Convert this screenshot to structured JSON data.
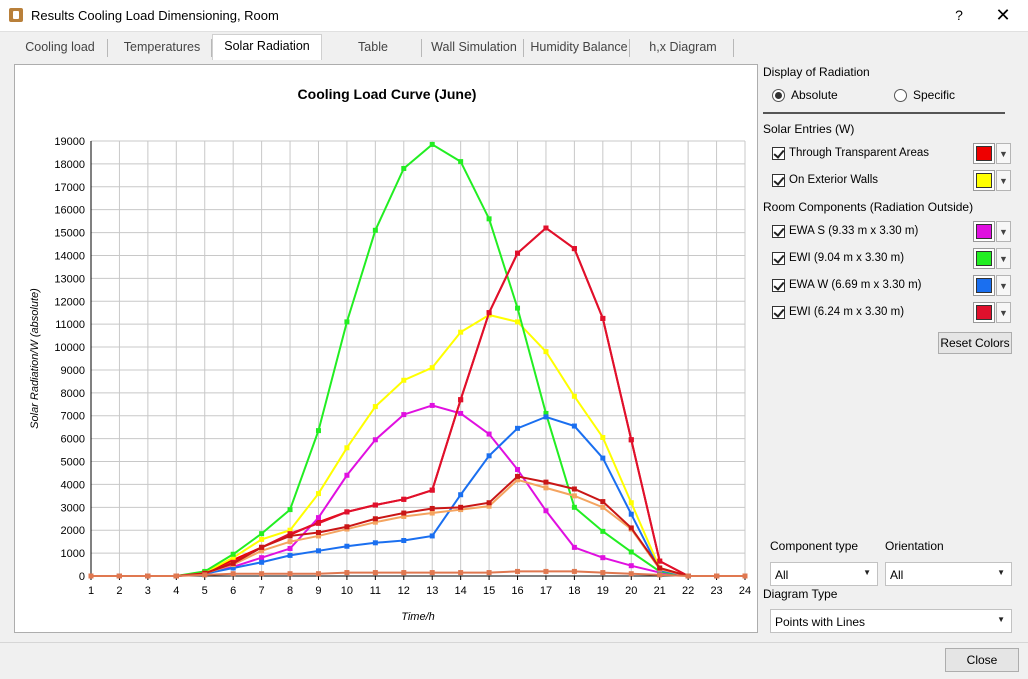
{
  "window": {
    "title": "Results Cooling Load Dimensioning, Room",
    "help": "?",
    "close": "✕"
  },
  "tabs": [
    {
      "label": "Cooling load"
    },
    {
      "label": "Temperatures"
    },
    {
      "label": "Solar Radiation"
    },
    {
      "label": "Table"
    },
    {
      "label": "Wall Simulation"
    },
    {
      "label": "Humidity Balance"
    },
    {
      "label": "h,x Diagram"
    }
  ],
  "right": {
    "display_label": "Display of Radiation",
    "absolute": "Absolute",
    "specific": "Specific",
    "solar_entries_label": "Solar Entries (W)",
    "through_transparent": "Through Transparent Areas",
    "on_exterior_walls": "On Exterior Walls",
    "room_components_label": "Room Components (Radiation Outside)",
    "components": [
      {
        "label": "EWA S (9.33 m x 3.30 m)",
        "color": "#e010e0"
      },
      {
        "label": "EWI (9.04 m x 3.30 m)",
        "color": "#22ee22"
      },
      {
        "label": "EWA W (6.69 m x 3.30 m)",
        "color": "#1a6ff0"
      },
      {
        "label": "EWI (6.24 m x 3.30 m)",
        "color": "#e0102c"
      }
    ],
    "transparent_color": "#ee0000",
    "walls_color": "#ffff00",
    "reset_colors": "Reset Colors",
    "component_type_label": "Component type",
    "component_type_value": "All",
    "orientation_label": "Orientation",
    "orientation_value": "All",
    "diagram_type_label": "Diagram Type",
    "diagram_type_value": "Points with Lines"
  },
  "footer": {
    "close": "Close"
  },
  "chart_data": {
    "type": "line",
    "title": "Cooling Load Curve (June)",
    "xlabel": "Time/h",
    "ylabel": "Solar Radiation/W (absolute)",
    "xlim": [
      1,
      24
    ],
    "ylim": [
      0,
      19000
    ],
    "x": [
      1,
      2,
      3,
      4,
      5,
      6,
      7,
      8,
      9,
      10,
      11,
      12,
      13,
      14,
      15,
      16,
      17,
      18,
      19,
      20,
      21,
      22,
      23,
      24
    ],
    "yticks": [
      0,
      1000,
      2000,
      3000,
      4000,
      5000,
      6000,
      7000,
      8000,
      9000,
      10000,
      11000,
      12000,
      13000,
      14000,
      15000,
      16000,
      17000,
      18000,
      19000
    ],
    "grid": true,
    "series": [
      {
        "name": "Through Transparent Areas",
        "color": "#ee0000",
        "values": [
          0,
          0,
          0,
          0,
          150,
          700,
          1250,
          1800,
          2350,
          2800,
          3100,
          3350,
          3750,
          7700,
          11500,
          14100,
          15200,
          14300,
          11250,
          5950,
          650,
          0,
          0,
          0
        ]
      },
      {
        "name": "On Exterior Walls",
        "color": "#ffff00",
        "values": [
          0,
          0,
          0,
          0,
          150,
          800,
          1600,
          2000,
          3600,
          5600,
          7400,
          8550,
          9100,
          10650,
          11400,
          11100,
          9800,
          7850,
          6050,
          3200,
          350,
          0,
          0,
          0
        ]
      },
      {
        "name": "EWA S (9.33 m x 3.30 m)",
        "color": "#e010e0",
        "values": [
          0,
          0,
          0,
          0,
          100,
          400,
          800,
          1200,
          2550,
          4400,
          5950,
          7050,
          7450,
          7100,
          6200,
          4650,
          2850,
          1250,
          800,
          450,
          150,
          0,
          0,
          0
        ]
      },
      {
        "name": "EWI (9.04 m x 3.30 m)",
        "color": "#22ee22",
        "values": [
          0,
          0,
          0,
          0,
          200,
          950,
          1850,
          2900,
          6350,
          11100,
          15100,
          17800,
          18850,
          18100,
          15600,
          11700,
          7100,
          3000,
          1950,
          1050,
          200,
          0,
          0,
          0
        ]
      },
      {
        "name": "EWA W (6.69 m x 3.30 m)",
        "color": "#1a6ff0",
        "values": [
          0,
          0,
          0,
          0,
          100,
          350,
          600,
          900,
          1100,
          1300,
          1450,
          1550,
          1750,
          3550,
          5250,
          6450,
          6950,
          6550,
          5150,
          2700,
          250,
          0,
          0,
          0
        ]
      },
      {
        "name": "EWI (6.24 m x 3.30 m)",
        "color": "#e0102c",
        "values": [
          0,
          0,
          0,
          0,
          100,
          600,
          1250,
          1850,
          2300,
          2800,
          3100,
          3350,
          3750,
          7700,
          11500,
          14100,
          15200,
          14300,
          11250,
          5950,
          650,
          0,
          0,
          0
        ]
      },
      {
        "name": "",
        "color": "#f4a460",
        "values": [
          0,
          0,
          0,
          0,
          120,
          500,
          1100,
          1500,
          1750,
          2050,
          2350,
          2600,
          2750,
          2900,
          3050,
          4200,
          3850,
          3500,
          3000,
          2050,
          300,
          0,
          0,
          0
        ]
      },
      {
        "name": "",
        "color": "#c91616",
        "values": [
          0,
          0,
          0,
          0,
          120,
          550,
          1250,
          1750,
          1900,
          2150,
          2500,
          2750,
          2950,
          3000,
          3200,
          4350,
          4100,
          3800,
          3250,
          2100,
          350,
          0,
          0,
          0
        ]
      },
      {
        "name": "",
        "color": "#e07850",
        "values": [
          0,
          0,
          0,
          0,
          50,
          100,
          100,
          100,
          100,
          150,
          150,
          150,
          150,
          150,
          150,
          200,
          200,
          200,
          150,
          100,
          50,
          0,
          0,
          0
        ]
      }
    ]
  }
}
